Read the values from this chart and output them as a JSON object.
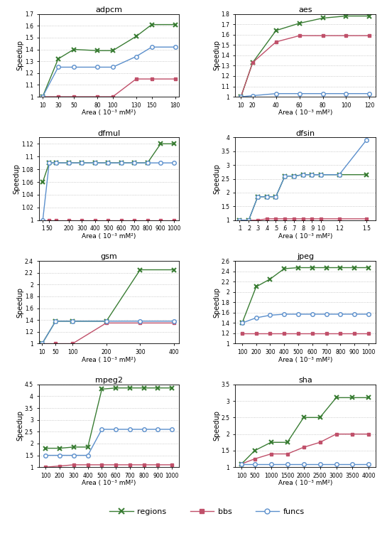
{
  "benchmarks": [
    {
      "title": "adpcm",
      "xlabel": "Area ( 10⁻³ mM²)",
      "ylabel": "Speedup",
      "ylim": [
        1.0,
        1.7
      ],
      "yticks": [
        1.0,
        1.1,
        1.2,
        1.3,
        1.4,
        1.5,
        1.6,
        1.7
      ],
      "regions": {
        "x": [
          10,
          30,
          50,
          80,
          100,
          130,
          150,
          180
        ],
        "y": [
          1.0,
          1.32,
          1.4,
          1.39,
          1.39,
          1.51,
          1.61,
          1.61
        ]
      },
      "bbs": {
        "x": [
          10,
          30,
          50,
          80,
          100,
          130,
          150,
          180
        ],
        "y": [
          1.0,
          1.0,
          1.0,
          1.0,
          1.0,
          1.15,
          1.15,
          1.15
        ]
      },
      "funcs": {
        "x": [
          10,
          30,
          50,
          80,
          100,
          130,
          150,
          180
        ],
        "y": [
          1.0,
          1.25,
          1.25,
          1.25,
          1.25,
          1.34,
          1.42,
          1.42
        ]
      },
      "xticks": [
        10,
        30,
        50,
        80,
        100,
        130,
        150,
        180
      ],
      "xlim": [
        5,
        185
      ]
    },
    {
      "title": "aes",
      "xlabel": "Area ( 10⁻³ mM²)",
      "ylabel": "Speedup",
      "ylim": [
        1.0,
        1.8
      ],
      "yticks": [
        1.0,
        1.1,
        1.2,
        1.3,
        1.4,
        1.5,
        1.6,
        1.7,
        1.8
      ],
      "regions": {
        "x": [
          10,
          20,
          40,
          60,
          80,
          100,
          120
        ],
        "y": [
          1.0,
          1.33,
          1.64,
          1.71,
          1.76,
          1.78,
          1.78
        ]
      },
      "bbs": {
        "x": [
          10,
          20,
          40,
          60,
          80,
          100,
          120
        ],
        "y": [
          1.0,
          1.33,
          1.53,
          1.59,
          1.59,
          1.59,
          1.59
        ]
      },
      "funcs": {
        "x": [
          10,
          20,
          40,
          60,
          80,
          100,
          120
        ],
        "y": [
          1.0,
          1.01,
          1.03,
          1.03,
          1.03,
          1.03,
          1.03
        ]
      },
      "xticks": [
        10,
        20,
        40,
        60,
        80,
        100,
        120
      ],
      "xlim": [
        5,
        125
      ]
    },
    {
      "title": "dfmul",
      "xlabel": "Area ( 10⁻³ mM²)",
      "ylabel": "Speedup",
      "ylim": [
        1.0,
        1.13
      ],
      "yticks": [
        1.0,
        1.02,
        1.04,
        1.06,
        1.08,
        1.1,
        1.12
      ],
      "regions": {
        "x": [
          1,
          50,
          100,
          200,
          300,
          400,
          500,
          600,
          700,
          800,
          900,
          1000
        ],
        "y": [
          1.06,
          1.09,
          1.09,
          1.09,
          1.09,
          1.09,
          1.09,
          1.09,
          1.09,
          1.09,
          1.12,
          1.12
        ]
      },
      "bbs": {
        "x": [
          1,
          50,
          100,
          200,
          300,
          400,
          500,
          600,
          700,
          800,
          900,
          1000
        ],
        "y": [
          1.0,
          1.0,
          1.0,
          1.0,
          1.0,
          1.0,
          1.0,
          1.0,
          1.0,
          1.0,
          1.0,
          1.0
        ]
      },
      "funcs": {
        "x": [
          1,
          50,
          100,
          200,
          300,
          400,
          500,
          600,
          700,
          800,
          900,
          1000
        ],
        "y": [
          1.0,
          1.09,
          1.09,
          1.09,
          1.09,
          1.09,
          1.09,
          1.09,
          1.09,
          1.09,
          1.09,
          1.09
        ]
      },
      "xticks": [
        1,
        50,
        200,
        300,
        400,
        500,
        600,
        700,
        800,
        900,
        1000
      ],
      "xtick_labels": [
        "1",
        "50",
        "200",
        "300",
        "400",
        "500",
        "600",
        "700",
        "800",
        "900",
        "1000"
      ],
      "xlim": [
        -30,
        1040
      ]
    },
    {
      "title": "dfsin",
      "xlabel": "Area ( 10⁻³ mM²)",
      "ylabel": "Speedup",
      "ylim": [
        1.0,
        4.0
      ],
      "yticks": [
        1.0,
        1.5,
        2.0,
        2.5,
        3.0,
        3.5,
        4.0
      ],
      "regions": {
        "x": [
          0.1,
          0.2,
          0.3,
          0.4,
          0.5,
          0.6,
          0.7,
          0.8,
          0.9,
          1.0,
          1.2,
          1.5
        ],
        "y": [
          1.0,
          1.0,
          1.85,
          1.85,
          1.85,
          2.6,
          2.6,
          2.65,
          2.65,
          2.65,
          2.65,
          2.65
        ]
      },
      "bbs": {
        "x": [
          0.1,
          0.2,
          0.3,
          0.4,
          0.5,
          0.6,
          0.7,
          0.8,
          0.9,
          1.0,
          1.2,
          1.5
        ],
        "y": [
          1.0,
          1.0,
          1.0,
          1.05,
          1.05,
          1.05,
          1.05,
          1.05,
          1.05,
          1.05,
          1.05,
          1.05
        ]
      },
      "funcs": {
        "x": [
          0.1,
          0.2,
          0.3,
          0.4,
          0.5,
          0.6,
          0.7,
          0.8,
          0.9,
          1.0,
          1.2,
          1.5
        ],
        "y": [
          1.0,
          1.0,
          1.85,
          1.85,
          1.85,
          2.6,
          2.6,
          2.65,
          2.65,
          2.65,
          2.65,
          3.9
        ]
      },
      "xticks": [
        0.1,
        0.2,
        0.3,
        0.4,
        0.5,
        0.6,
        0.7,
        0.8,
        0.9,
        1.0,
        1.2,
        1.5
      ],
      "xtick_labels": [
        ".1",
        ".2",
        ".3",
        ".4",
        ".5",
        ".6",
        ".7",
        ".8",
        ".9",
        "1.0",
        "1.2",
        "1.5"
      ],
      "xlim": [
        0.05,
        1.6
      ]
    },
    {
      "title": "gsm",
      "xlabel": "Area ( 10⁻³ mM²)",
      "ylabel": "Speedup",
      "ylim": [
        1.0,
        2.4
      ],
      "yticks": [
        1.0,
        1.2,
        1.4,
        1.6,
        1.8,
        2.0,
        2.2,
        2.4
      ],
      "regions": {
        "x": [
          10,
          50,
          100,
          200,
          300,
          400
        ],
        "y": [
          1.0,
          1.38,
          1.38,
          1.38,
          2.25,
          2.25
        ]
      },
      "bbs": {
        "x": [
          10,
          50,
          100,
          200,
          300,
          400
        ],
        "y": [
          1.0,
          1.0,
          1.0,
          1.35,
          1.35,
          1.35
        ]
      },
      "funcs": {
        "x": [
          10,
          50,
          100,
          200,
          300,
          400
        ],
        "y": [
          1.0,
          1.38,
          1.38,
          1.38,
          1.38,
          1.38
        ]
      },
      "xticks": [
        10,
        50,
        100,
        200,
        300,
        400
      ],
      "xlim": [
        0,
        415
      ]
    },
    {
      "title": "jpeg",
      "xlabel": "Area ( 10⁻³ mM²)",
      "ylabel": "Speedup",
      "ylim": [
        1.0,
        2.6
      ],
      "yticks": [
        1.0,
        1.2,
        1.4,
        1.6,
        1.8,
        2.0,
        2.2,
        2.4,
        2.6
      ],
      "regions": {
        "x": [
          100,
          200,
          300,
          400,
          500,
          600,
          700,
          800,
          900,
          1000
        ],
        "y": [
          1.4,
          2.1,
          2.25,
          2.45,
          2.47,
          2.47,
          2.47,
          2.47,
          2.47,
          2.47
        ]
      },
      "bbs": {
        "x": [
          100,
          200,
          300,
          400,
          500,
          600,
          700,
          800,
          900,
          1000
        ],
        "y": [
          1.2,
          1.2,
          1.2,
          1.2,
          1.2,
          1.2,
          1.2,
          1.2,
          1.2,
          1.2
        ]
      },
      "funcs": {
        "x": [
          100,
          200,
          300,
          400,
          500,
          600,
          700,
          800,
          900,
          1000
        ],
        "y": [
          1.4,
          1.5,
          1.55,
          1.57,
          1.57,
          1.57,
          1.57,
          1.57,
          1.57,
          1.57
        ]
      },
      "xticks": [
        100,
        200,
        300,
        400,
        500,
        600,
        700,
        800,
        900,
        1000
      ],
      "xlim": [
        50,
        1050
      ]
    },
    {
      "title": "mpeg2",
      "xlabel": "Area ( 10⁻³ mM²)",
      "ylabel": "Speedup",
      "ylim": [
        1.0,
        4.5
      ],
      "yticks": [
        1.0,
        1.5,
        2.0,
        2.5,
        3.0,
        3.5,
        4.0,
        4.5
      ],
      "regions": {
        "x": [
          100,
          200,
          300,
          400,
          500,
          600,
          700,
          800,
          900,
          1000
        ],
        "y": [
          1.8,
          1.8,
          1.85,
          1.85,
          4.3,
          4.35,
          4.35,
          4.35,
          4.35,
          4.35
        ]
      },
      "bbs": {
        "x": [
          100,
          200,
          300,
          400,
          500,
          600,
          700,
          800,
          900,
          1000
        ],
        "y": [
          1.0,
          1.05,
          1.1,
          1.1,
          1.1,
          1.1,
          1.1,
          1.1,
          1.1,
          1.1
        ]
      },
      "funcs": {
        "x": [
          100,
          200,
          300,
          400,
          500,
          600,
          700,
          800,
          900,
          1000
        ],
        "y": [
          1.5,
          1.5,
          1.5,
          1.5,
          2.6,
          2.6,
          2.6,
          2.6,
          2.6,
          2.6
        ]
      },
      "xticks": [
        100,
        200,
        300,
        400,
        500,
        600,
        700,
        800,
        900,
        1000
      ],
      "xlim": [
        50,
        1050
      ]
    },
    {
      "title": "sha",
      "xlabel": "Area ( 10⁻³ mM²)",
      "ylabel": "Speedup",
      "ylim": [
        1.0,
        3.5
      ],
      "yticks": [
        1.0,
        1.5,
        2.0,
        2.5,
        3.0,
        3.5
      ],
      "regions": {
        "x": [
          100,
          500,
          1000,
          1500,
          2000,
          2500,
          3000,
          3500,
          4000
        ],
        "y": [
          1.1,
          1.5,
          1.75,
          1.75,
          2.5,
          2.5,
          3.1,
          3.1,
          3.1
        ]
      },
      "bbs": {
        "x": [
          100,
          500,
          1000,
          1500,
          2000,
          2500,
          3000,
          3500,
          4000
        ],
        "y": [
          1.1,
          1.25,
          1.4,
          1.4,
          1.6,
          1.75,
          2.0,
          2.0,
          2.0
        ]
      },
      "funcs": {
        "x": [
          100,
          500,
          1000,
          1500,
          2000,
          2500,
          3000,
          3500,
          4000
        ],
        "y": [
          1.1,
          1.1,
          1.1,
          1.1,
          1.1,
          1.1,
          1.1,
          1.1,
          1.1
        ]
      },
      "xticks": [
        100,
        500,
        1000,
        1500,
        2000,
        2500,
        3000,
        3500,
        4000
      ],
      "xlim": [
        -100,
        4200
      ]
    }
  ],
  "colors": {
    "regions": "#3a7d34",
    "bbs": "#c0506a",
    "funcs": "#5b8fcc"
  },
  "markers": {
    "regions": "x",
    "bbs": "s",
    "funcs": "o"
  }
}
